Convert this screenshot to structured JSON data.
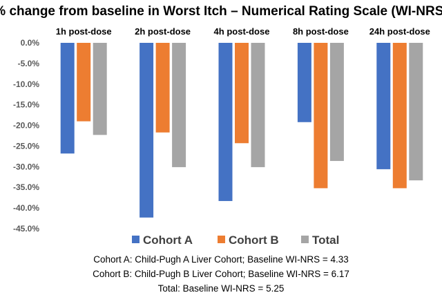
{
  "chart_data": {
    "type": "bar",
    "title": "% change from baseline in Worst Itch – Numerical Rating Scale (WI-NRS)",
    "xlabel": "",
    "ylabel": "",
    "categories": [
      "1h post-dose",
      "2h post-dose",
      "4h post-dose",
      "8h post-dose",
      "24h post-dose"
    ],
    "series": [
      {
        "name": "Cohort A",
        "color": "#4472C4",
        "values": [
          -26.8,
          -42.3,
          -38.3,
          -19.2,
          -30.6
        ]
      },
      {
        "name": "Cohort B",
        "color": "#ED7D31",
        "values": [
          -19.0,
          -21.7,
          -24.3,
          -35.2,
          -35.2
        ]
      },
      {
        "name": "Total",
        "color": "#A5A5A5",
        "values": [
          -22.3,
          -30.1,
          -30.1,
          -28.6,
          -33.3
        ]
      }
    ],
    "ylim": [
      -45,
      0
    ],
    "yticks": [
      "0.0%",
      "-5.0%",
      "-10.0%",
      "-15.0%",
      "-20.0%",
      "-25.0%",
      "-30.0%",
      "-35.0%",
      "-40.0%",
      "-45.0%"
    ],
    "grid": false,
    "category_labels_position": "top",
    "legend_position": "bottom"
  },
  "notes": [
    "Cohort A: Child-Pugh A Liver Cohort; Baseline WI-NRS = 4.33",
    "Cohort B: Child-Pugh B Liver Cohort; Baseline WI-NRS = 6.17",
    "Total: Baseline WI-NRS = 5.25"
  ]
}
